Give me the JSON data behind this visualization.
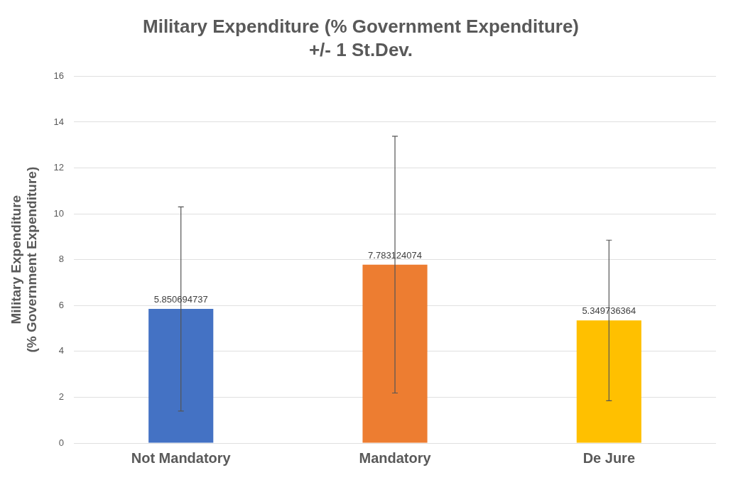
{
  "chart_data": {
    "type": "bar",
    "title": "Military Expenditure (% Government Expenditure)",
    "subtitle": "+/- 1 St.Dev.",
    "ylabel": "Military Expenditure\n(% Government Expenditure)",
    "categories": [
      "Not Mandatory",
      "Mandatory",
      "De Jure"
    ],
    "values": [
      5.850694737,
      7.783124074,
      5.349736364
    ],
    "colors": [
      "#4472c4",
      "#ed7d31",
      "#ffc000"
    ],
    "errors": [
      4.45,
      5.6,
      3.5
    ],
    "ylim": [
      0,
      16
    ],
    "yticks": [
      0,
      2,
      4,
      6,
      8,
      10,
      12,
      14,
      16
    ],
    "grid": "y",
    "data_labels": true,
    "legend": false
  }
}
